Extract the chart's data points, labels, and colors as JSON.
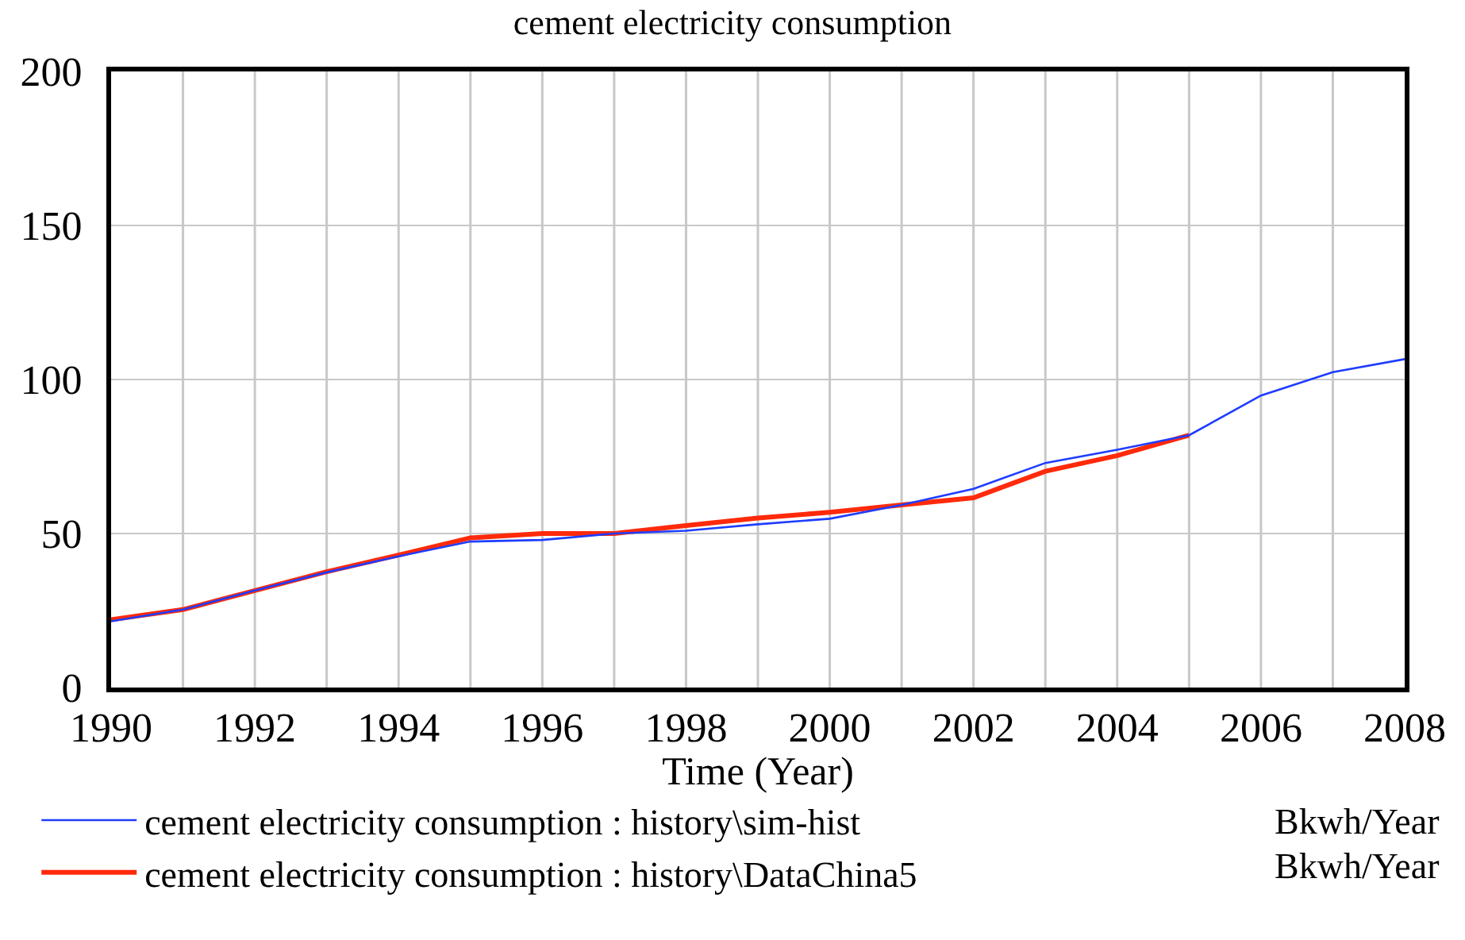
{
  "chart_data": {
    "type": "line",
    "title": "cement electricity consumption",
    "xlabel": "Time (Year)",
    "x": [
      1990,
      1991,
      1992,
      1993,
      1994,
      1995,
      1996,
      1997,
      1998,
      1999,
      2000,
      2001,
      2002,
      2003,
      2004,
      2005,
      2006,
      2007,
      2008
    ],
    "series": [
      {
        "name": "cement electricity consumption : history\\sim-hist",
        "color": "#1f3dff",
        "values": [
          21.5,
          25.3,
          31.5,
          37.4,
          42.6,
          47.4,
          47.9,
          50,
          50.9,
          53,
          54.8,
          59.3,
          64.5,
          72.9,
          77.2,
          81.9,
          94.8,
          102.4,
          106.6
        ]
      },
      {
        "name": "cement electricity consumption : history\\DataChina5",
        "color": "#ff2a0a",
        "values": [
          22,
          25.3,
          31.5,
          37.6,
          43,
          48.6,
          50,
          50,
          52.6,
          55,
          56.9,
          59.3,
          61.6,
          70.2,
          75.3,
          81.9,
          null,
          null,
          null
        ]
      }
    ],
    "annotations": [
      "Bkwh/Year",
      "Bkwh/Year"
    ],
    "xlim": [
      1990,
      2008
    ],
    "xticks": [
      1990,
      1992,
      1994,
      1996,
      1998,
      2000,
      2002,
      2004,
      2006,
      2008
    ],
    "ylim": [
      0,
      200
    ],
    "yticks": [
      0,
      50,
      100,
      150,
      200
    ],
    "grid": true,
    "legend": "bottom",
    "marker": "none",
    "line_style": "solid"
  }
}
